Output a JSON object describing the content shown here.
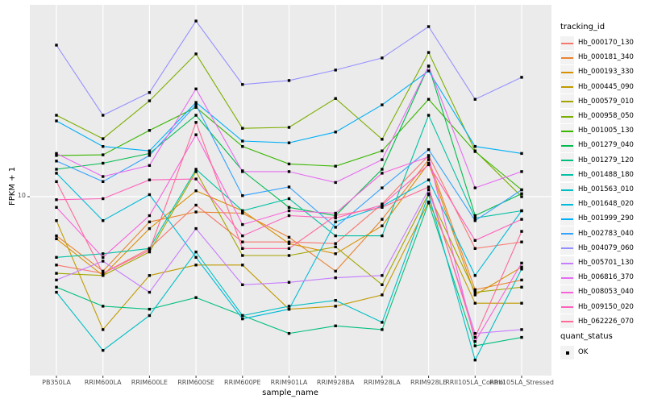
{
  "chart_data": {
    "type": "line",
    "xlabel": "sample_name",
    "ylabel": "FPKM + 1",
    "y_scale": "log10",
    "y_tick_label": "10",
    "y_ticks": [
      10
    ],
    "grid": true,
    "panel_bg": "#EBEBEB",
    "grid_color": "#FFFFFF",
    "point_marker": "square",
    "point_color": "#000000",
    "legend_title": "tracking_id",
    "quant_legend_title": "quant_status",
    "quant_legend_items": [
      "OK"
    ],
    "categories": [
      "PB350LA",
      "RRIM600LA",
      "RRIM600LE",
      "RRIM600SE",
      "RRIM600PE",
      "RRIM901LA",
      "RRIM928BA",
      "RRIM928LA",
      "RRIM928LE",
      "RRII105LA_Control",
      "RRII105LA_Stressed"
    ],
    "series": [
      {
        "name": "Hb_000170_130",
        "color": "#F8766D",
        "values": [
          5.1,
          4.7,
          6.0,
          9.2,
          6.4,
          6.4,
          6.3,
          9.3,
          15.0,
          6.0,
          6.4
        ]
      },
      {
        "name": "Hb_000181_340",
        "color": "#EA8331",
        "values": [
          6.8,
          4.8,
          7.8,
          8.6,
          8.5,
          6.7,
          4.8,
          8.0,
          14.4,
          4.0,
          4.4
        ]
      },
      {
        "name": "Hb_000193_330",
        "color": "#D89000",
        "values": [
          6.6,
          4.6,
          7.3,
          10.6,
          8.7,
          6.3,
          5.7,
          7.5,
          13.9,
          3.8,
          5.0
        ]
      },
      {
        "name": "Hb_000445_090",
        "color": "#C09B00",
        "values": [
          7.9,
          2.7,
          4.6,
          5.1,
          5.1,
          3.3,
          3.4,
          3.8,
          9.5,
          3.5,
          3.5
        ]
      },
      {
        "name": "Hb_000579_010",
        "color": "#A3A500",
        "values": [
          4.7,
          4.6,
          5.8,
          12.8,
          5.6,
          5.6,
          6.1,
          4.2,
          10.3,
          3.9,
          4.1
        ]
      },
      {
        "name": "Hb_000958_050",
        "color": "#7CAE00",
        "values": [
          22.3,
          17.7,
          25.7,
          40.8,
          19.6,
          19.8,
          26.3,
          17.6,
          41.4,
          15.7,
          10.0
        ]
      },
      {
        "name": "Hb_001005_130",
        "color": "#39B600",
        "values": [
          15.0,
          15.1,
          19.2,
          24.1,
          16.4,
          13.8,
          13.5,
          15.7,
          26.1,
          15.6,
          10.7
        ]
      },
      {
        "name": "Hb_001279_040",
        "color": "#00BB4E",
        "values": [
          13.1,
          13.9,
          15.3,
          22.3,
          12.9,
          9.0,
          8.3,
          13.1,
          36.2,
          8.3,
          10.3
        ]
      },
      {
        "name": "Hb_001279_120",
        "color": "#00BF7D",
        "values": [
          4.1,
          3.4,
          3.3,
          3.7,
          3.1,
          2.6,
          2.8,
          2.7,
          9.4,
          2.3,
          2.5
        ]
      },
      {
        "name": "Hb_001488_180",
        "color": "#00C1A3",
        "values": [
          5.5,
          5.7,
          6.0,
          13.1,
          8.7,
          9.8,
          6.8,
          6.8,
          22.3,
          8.1,
          8.7
        ]
      },
      {
        "name": "Hb_001563_010",
        "color": "#00BFC4",
        "values": [
          3.9,
          2.2,
          3.1,
          5.8,
          3.1,
          3.4,
          3.6,
          2.9,
          10.2,
          2.0,
          4.9
        ]
      },
      {
        "name": "Hb_001648_020",
        "color": "#00BBDA",
        "values": [
          12.6,
          7.9,
          10.2,
          5.5,
          3.0,
          3.3,
          7.8,
          9.1,
          11.8,
          4.6,
          8.7
        ]
      },
      {
        "name": "Hb_001999_290",
        "color": "#00B0F6",
        "values": [
          21.1,
          16.4,
          15.7,
          25.3,
          17.3,
          17.0,
          18.9,
          24.7,
          34.5,
          16.4,
          15.3
        ]
      },
      {
        "name": "Hb_002783_040",
        "color": "#35A2FF",
        "values": [
          14.2,
          11.6,
          15.0,
          24.7,
          10.1,
          11.0,
          7.4,
          10.9,
          15.9,
          7.9,
          10.7
        ]
      },
      {
        "name": "Hb_004079_060",
        "color": "#9590FF",
        "values": [
          44.5,
          22.3,
          27.9,
          56.4,
          30.2,
          31.4,
          34.8,
          39.2,
          53.4,
          26.1,
          32.4
        ]
      },
      {
        "name": "Hb_005701_130",
        "color": "#C77CFF",
        "values": [
          4.4,
          5.3,
          3.9,
          7.3,
          4.2,
          4.3,
          4.5,
          4.6,
          10.7,
          2.6,
          2.7
        ]
      },
      {
        "name": "Hb_006816_370",
        "color": "#E76BF3",
        "values": [
          15.3,
          12.2,
          13.6,
          28.9,
          12.8,
          12.8,
          11.5,
          14.4,
          36.2,
          10.9,
          12.8
        ]
      },
      {
        "name": "Hb_008053_040",
        "color": "#FA62DB",
        "values": [
          9.0,
          5.5,
          8.3,
          18.4,
          7.6,
          8.7,
          8.5,
          12.6,
          14.8,
          2.4,
          5.2
        ]
      },
      {
        "name": "Hb_009150_020",
        "color": "#FF62BC",
        "values": [
          9.7,
          9.8,
          11.8,
          11.9,
          6.8,
          8.3,
          8.1,
          9.2,
          13.7,
          6.5,
          8.0
        ]
      },
      {
        "name": "Hb_062226_070",
        "color": "#FF6A98",
        "values": [
          11.6,
          4.7,
          5.9,
          20.8,
          6.0,
          6.0,
          8.3,
          9.0,
          11.0,
          2.5,
          7.1
        ]
      }
    ]
  }
}
